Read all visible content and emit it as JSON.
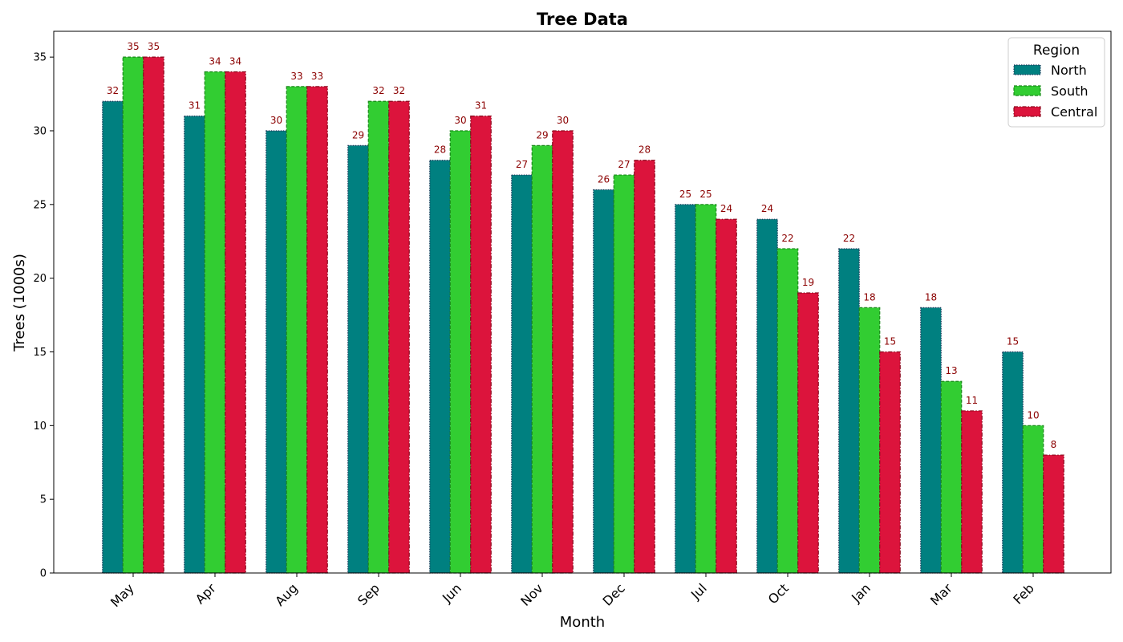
{
  "chart_data": {
    "type": "bar",
    "title": "Tree Data",
    "xlabel": "Month",
    "ylabel": "Trees (1000s)",
    "ylim": [
      0,
      36.75
    ],
    "yticks": [
      0,
      5,
      10,
      15,
      20,
      25,
      30,
      35
    ],
    "grid": false,
    "legend_title": "Region",
    "legend_position": "top-right",
    "categories": [
      "May",
      "Apr",
      "Aug",
      "Sep",
      "Jun",
      "Nov",
      "Dec",
      "Jul",
      "Oct",
      "Jan",
      "Mar",
      "Feb"
    ],
    "series": [
      {
        "name": "North",
        "color": "#008080",
        "edge_color": "#1f3b5c",
        "edge_style": "dotted",
        "values": [
          32,
          31,
          30,
          29,
          28,
          27,
          26,
          25,
          24,
          22,
          18,
          15
        ]
      },
      {
        "name": "South",
        "color": "#32cd32",
        "edge_color": "#1a8a1a",
        "edge_style": "dashed",
        "values": [
          35,
          34,
          33,
          32,
          30,
          29,
          27,
          25,
          22,
          18,
          13,
          10
        ]
      },
      {
        "name": "Central",
        "color": "#dc143c",
        "edge_color": "#8b0a1e",
        "edge_style": "dashdot",
        "values": [
          35,
          34,
          33,
          32,
          31,
          30,
          28,
          24,
          19,
          15,
          11,
          8
        ]
      }
    ],
    "data_label_color": "#8b0000"
  }
}
